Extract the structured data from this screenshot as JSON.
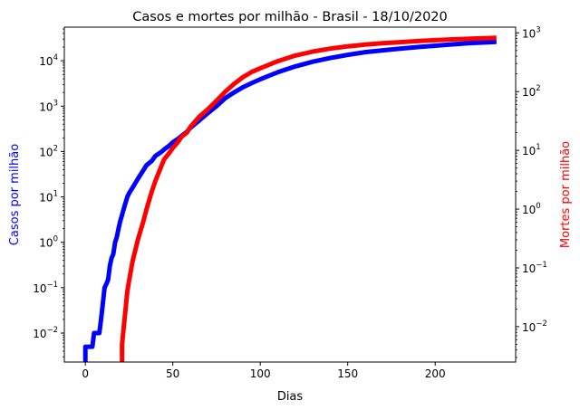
{
  "chart_data": {
    "type": "line",
    "title": "Casos e mortes por milhão - Brasil - 18/10/2020",
    "xlabel": "Dias",
    "ylabel_left": "Casos por milhão",
    "ylabel_right": "Mortes por milhão",
    "xlim": [
      -12,
      246
    ],
    "xticks": [
      0,
      50,
      100,
      150,
      200
    ],
    "y_left": {
      "scale": "log",
      "lim": [
        0.0023,
        55000
      ],
      "ticks": [
        0.01,
        0.1,
        1,
        10,
        100,
        1000,
        10000
      ],
      "tick_labels": [
        [
          "10",
          "−2"
        ],
        [
          "10",
          "−1"
        ],
        [
          "10",
          "0"
        ],
        [
          "10",
          "1"
        ],
        [
          "10",
          "2"
        ],
        [
          "10",
          "3"
        ],
        [
          "10",
          "4"
        ]
      ]
    },
    "y_right": {
      "scale": "log",
      "lim": [
        0.0025,
        1250
      ],
      "ticks": [
        0.01,
        0.1,
        1,
        10,
        100,
        1000
      ],
      "tick_labels": [
        [
          "10",
          "−2"
        ],
        [
          "10",
          "−1"
        ],
        [
          "10",
          "0"
        ],
        [
          "10",
          "1"
        ],
        [
          "10",
          "2"
        ],
        [
          "10",
          "3"
        ]
      ]
    },
    "grid": false,
    "series": [
      {
        "axis": "left",
        "color": "#0000ff",
        "x": [
          0,
          0,
          1,
          2,
          3,
          4,
          5,
          6,
          7,
          8,
          9,
          10,
          11,
          12,
          13,
          14,
          15,
          16,
          17,
          18,
          19,
          20,
          21,
          22,
          23,
          24,
          25,
          27,
          30,
          33,
          35,
          38,
          40,
          43,
          45,
          48,
          50,
          53,
          55,
          58,
          60,
          65,
          70,
          75,
          80,
          85,
          90,
          95,
          100,
          110,
          120,
          130,
          140,
          150,
          160,
          170,
          180,
          190,
          200,
          210,
          220,
          230,
          235
        ],
        "y": [
          0.0023,
          0.005,
          0.005,
          0.005,
          0.005,
          0.005,
          0.01,
          0.01,
          0.01,
          0.01,
          0.02,
          0.045,
          0.1,
          0.12,
          0.15,
          0.3,
          0.45,
          0.55,
          1.0,
          1.3,
          2.0,
          3.0,
          4.0,
          5.5,
          7.5,
          10,
          12,
          16,
          25,
          38,
          50,
          62,
          80,
          95,
          110,
          135,
          160,
          190,
          220,
          270,
          330,
          480,
          700,
          1000,
          1500,
          2000,
          2600,
          3200,
          3900,
          5600,
          7500,
          9500,
          11500,
          13500,
          15500,
          17000,
          18500,
          20000,
          21500,
          23000,
          24500,
          25500,
          26000
        ]
      },
      {
        "axis": "right",
        "color": "#ff0000",
        "x": [
          21,
          21,
          22,
          23,
          24,
          25,
          27,
          30,
          33,
          35,
          38,
          40,
          43,
          45,
          48,
          50,
          53,
          55,
          58,
          60,
          65,
          70,
          75,
          80,
          85,
          90,
          95,
          100,
          110,
          120,
          130,
          140,
          150,
          160,
          170,
          180,
          190,
          200,
          210,
          220,
          230,
          235
        ],
        "y": [
          0.0025,
          0.005,
          0.01,
          0.02,
          0.04,
          0.06,
          0.13,
          0.3,
          0.6,
          1.0,
          2.0,
          3.0,
          5.0,
          7.0,
          9.0,
          11,
          14,
          17,
          20,
          25,
          37,
          50,
          70,
          100,
          135,
          175,
          215,
          250,
          330,
          410,
          480,
          540,
          590,
          630,
          665,
          695,
          725,
          750,
          775,
          795,
          815,
          825
        ]
      }
    ]
  }
}
